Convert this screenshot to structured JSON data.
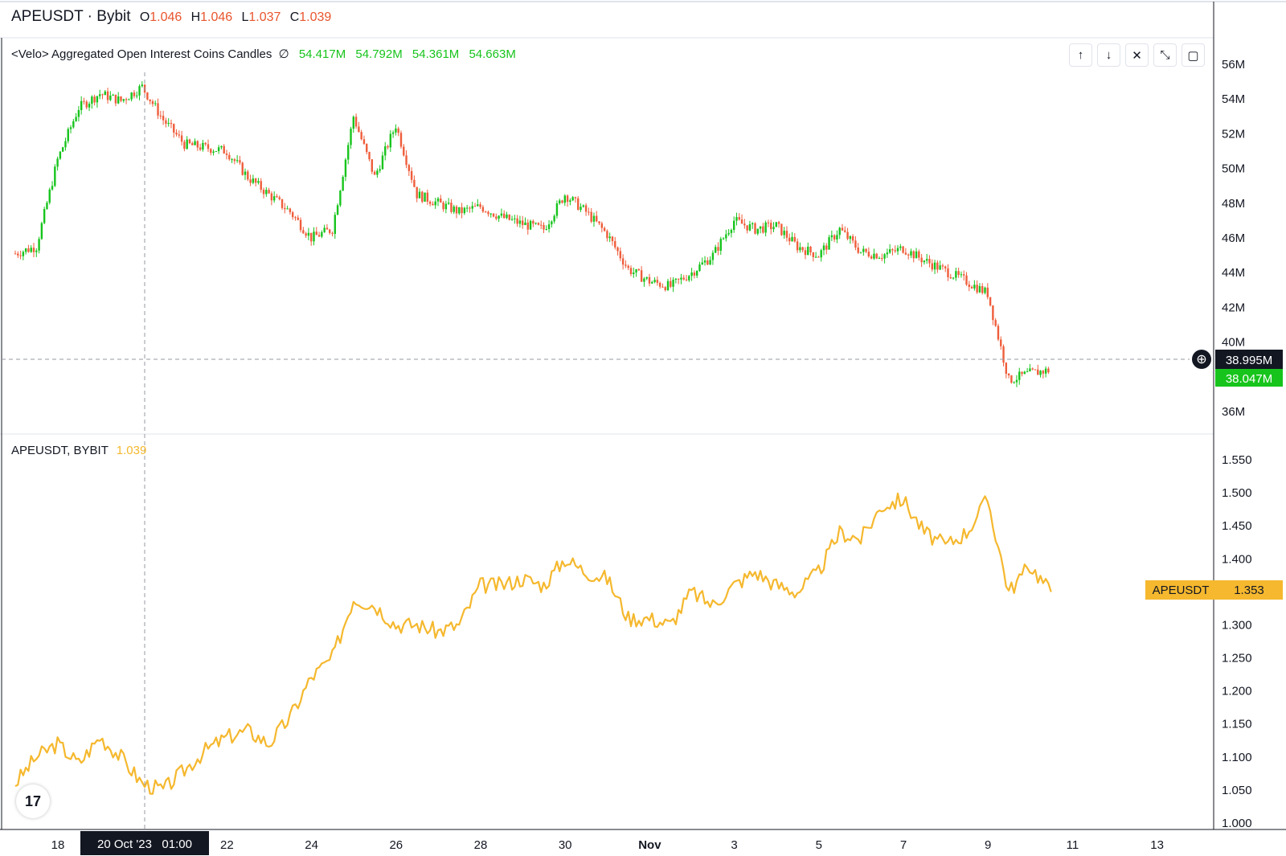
{
  "header": {
    "symbol": "APEUSDT · Bybit",
    "o_label": "O",
    "o_value": "1.046",
    "h_label": "H",
    "h_value": "1.046",
    "l_label": "L",
    "l_value": "1.037",
    "c_label": "C",
    "c_value": "1.039"
  },
  "indicator": {
    "title": "<Velo> Aggregated Open Interest Coins Candles",
    "eye_symbol": "∅",
    "values": [
      "54.417M",
      "54.792M",
      "54.361M",
      "54.663M"
    ]
  },
  "price_pane": {
    "title": "APEUSDT, BYBIT",
    "value": "1.039",
    "tag_symbol": "APEUSDT",
    "tag_value": "1.353"
  },
  "crosshair": {
    "date_label": "20 Oct '23   01:00",
    "oi_label": "38.995M",
    "last_oi_label": "38.047M"
  },
  "toolbar": {
    "up_icon": "↑",
    "down_icon": "↓",
    "close_icon": "✕",
    "collapse_icon": "⤡",
    "maximize_icon": "▢"
  },
  "logo_text": "17",
  "colors": {
    "up": "#26a69a",
    "green_candle": "#17c41c",
    "red_candle": "#ef5d3b",
    "price_line": "#f5b82e",
    "grid_text": "#131722",
    "ohlc": "#e8552d"
  },
  "chart_data": [
    {
      "type": "candlestick",
      "title": "<Velo> Aggregated Open Interest Coins Candles",
      "ylim": [
        35,
        57
      ],
      "y_ticks": [
        "56M",
        "54M",
        "52M",
        "50M",
        "48M",
        "46M",
        "44M",
        "42M",
        "40M",
        "36M"
      ],
      "y_tick_values": [
        56,
        54,
        52,
        50,
        48,
        46,
        44,
        42,
        40,
        36
      ],
      "units": "M",
      "x": [
        "Oct 17",
        "Oct 17.5",
        "Oct 18",
        "Oct 18.5",
        "Oct 19",
        "Oct 19.5",
        "Oct 20",
        "Oct 20.5",
        "Oct 21",
        "Oct 21.5",
        "Oct 22",
        "Oct 22.5",
        "Oct 23",
        "Oct 23.5",
        "Oct 24",
        "Oct 24.5",
        "Oct 25",
        "Oct 25.5",
        "Oct 26",
        "Oct 26.5",
        "Oct 27",
        "Oct 27.5",
        "Oct 28",
        "Oct 28.5",
        "Oct 29",
        "Oct 29.5",
        "Oct 30",
        "Oct 30.5",
        "Oct 31",
        "Oct 31.5",
        "Nov 1",
        "Nov 1.5",
        "Nov 2",
        "Nov 2.5",
        "Nov 3",
        "Nov 3.5",
        "Nov 4",
        "Nov 4.5",
        "Nov 5",
        "Nov 5.5",
        "Nov 6",
        "Nov 6.5",
        "Nov 7",
        "Nov 7.5",
        "Nov 8",
        "Nov 8.5",
        "Nov 9",
        "Nov 9.5",
        "Nov 10",
        "Nov 10.5"
      ],
      "values": [
        45.1,
        45.5,
        50.5,
        53.5,
        54.3,
        53.9,
        54.7,
        52.8,
        51.4,
        51.2,
        51.0,
        49.5,
        48.5,
        47.5,
        46.0,
        46.5,
        53.0,
        49.5,
        52.5,
        48.5,
        48.0,
        47.5,
        47.8,
        47.2,
        46.8,
        46.5,
        48.5,
        47.5,
        46.2,
        44.2,
        43.5,
        43.2,
        44.0,
        45.0,
        47.0,
        46.5,
        46.7,
        45.5,
        45.0,
        46.5,
        45.2,
        45.0,
        45.4,
        44.7,
        44.1,
        43.5,
        42.8,
        37.8,
        38.2,
        38.4
      ],
      "x_ticks": [
        "18",
        "22",
        "24",
        "26",
        "28",
        "30",
        "Nov",
        "3",
        "5",
        "7",
        "9",
        "11",
        "13"
      ]
    },
    {
      "type": "line",
      "title": "APEUSDT, BYBIT",
      "ylim": [
        1.0,
        1.56
      ],
      "y_ticks": [
        "1.550",
        "1.500",
        "1.450",
        "1.400",
        "1.350",
        "1.300",
        "1.250",
        "1.200",
        "1.150",
        "1.100",
        "1.050",
        "1.000"
      ],
      "y_tick_values": [
        1.55,
        1.5,
        1.45,
        1.4,
        1.35,
        1.3,
        1.25,
        1.2,
        1.15,
        1.1,
        1.05,
        1.0
      ],
      "x": [
        "Oct 17",
        "Oct 17.5",
        "Oct 18",
        "Oct 18.5",
        "Oct 19",
        "Oct 19.5",
        "Oct 20",
        "Oct 20.5",
        "Oct 21",
        "Oct 21.5",
        "Oct 22",
        "Oct 22.5",
        "Oct 23",
        "Oct 23.5",
        "Oct 24",
        "Oct 24.5",
        "Oct 25",
        "Oct 25.5",
        "Oct 26",
        "Oct 26.5",
        "Oct 27",
        "Oct 27.5",
        "Oct 28",
        "Oct 28.5",
        "Oct 29",
        "Oct 29.5",
        "Oct 30",
        "Oct 30.5",
        "Oct 31",
        "Oct 31.5",
        "Nov 1",
        "Nov 1.5",
        "Nov 2",
        "Nov 2.5",
        "Nov 3",
        "Nov 3.5",
        "Nov 4",
        "Nov 4.5",
        "Nov 5",
        "Nov 5.5",
        "Nov 6",
        "Nov 6.5",
        "Nov 7",
        "Nov 7.5",
        "Nov 8",
        "Nov 8.5",
        "Nov 9",
        "Nov 9.5",
        "Nov 10",
        "Nov 10.5"
      ],
      "values": [
        1.06,
        1.1,
        1.12,
        1.09,
        1.13,
        1.1,
        1.06,
        1.05,
        1.08,
        1.11,
        1.13,
        1.14,
        1.12,
        1.16,
        1.22,
        1.25,
        1.34,
        1.33,
        1.3,
        1.3,
        1.29,
        1.3,
        1.36,
        1.36,
        1.37,
        1.36,
        1.4,
        1.38,
        1.37,
        1.31,
        1.31,
        1.3,
        1.35,
        1.33,
        1.36,
        1.38,
        1.36,
        1.35,
        1.38,
        1.44,
        1.43,
        1.48,
        1.49,
        1.44,
        1.42,
        1.44,
        1.49,
        1.35,
        1.39,
        1.35
      ],
      "x_ticks": [
        "18",
        "22",
        "24",
        "26",
        "28",
        "30",
        "Nov",
        "3",
        "5",
        "7",
        "9",
        "11",
        "13"
      ]
    }
  ]
}
